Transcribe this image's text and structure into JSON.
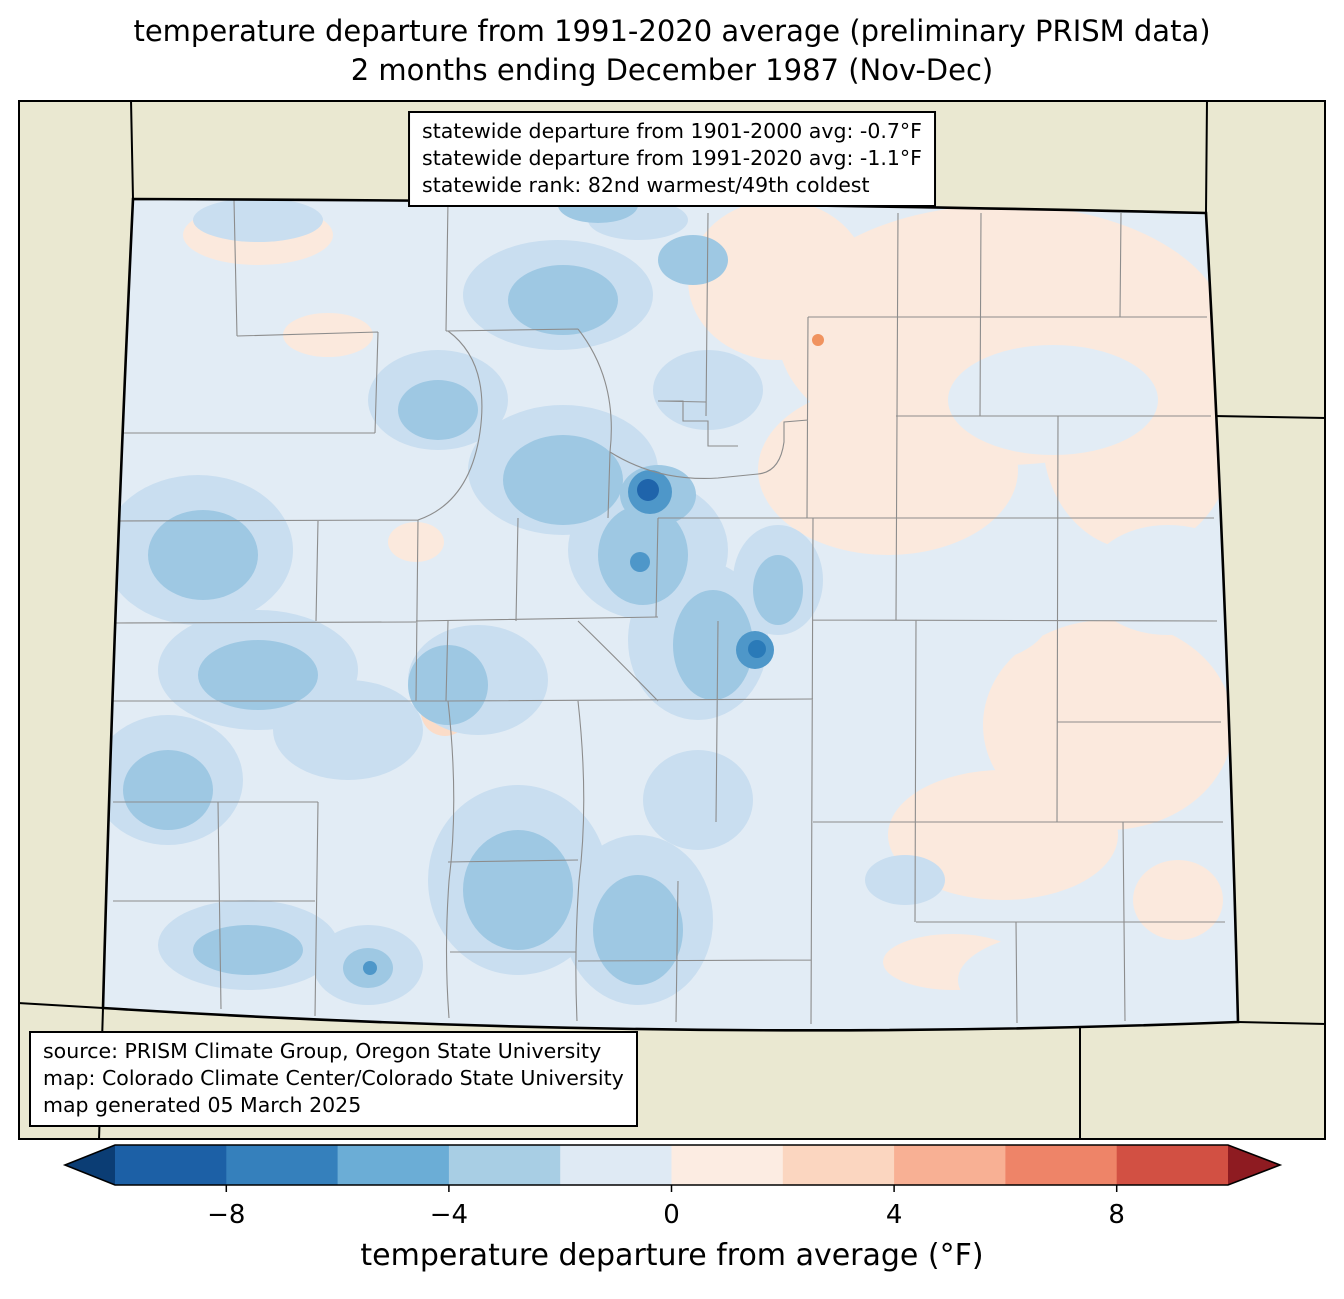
{
  "title": {
    "line1": "temperature departure from 1991-2020 average (preliminary PRISM data)",
    "line2": "2 months ending December 1987 (Nov-Dec)"
  },
  "stats_box": {
    "lines": [
      "statewide departure from 1901-2000 avg: -0.7°F",
      "statewide departure from 1991-2020 avg: -1.1°F",
      "statewide rank: 82nd warmest/49th coldest"
    ]
  },
  "source_box": {
    "lines": [
      "source: PRISM Climate Group, Oregon State University",
      "map: Colorado Climate Center/Colorado State University",
      "map generated 05 March 2025"
    ]
  },
  "map": {
    "region": "Colorado",
    "background_outside_color": "#eae8d1",
    "base_fill_color": "#e2ecf5",
    "state_border_color": "#000000",
    "county_line_color": "#8c8c8c"
  },
  "colorbar": {
    "label": "temperature departure from average (°F)",
    "range": [
      -10,
      10
    ],
    "ticks": [
      {
        "value": -8,
        "label": "−8"
      },
      {
        "value": -4,
        "label": "−4"
      },
      {
        "value": 0,
        "label": "0"
      },
      {
        "value": 4,
        "label": "4"
      },
      {
        "value": 8,
        "label": "8"
      }
    ],
    "segment_colors": [
      "#1c60a6",
      "#3580bc",
      "#6badd6",
      "#a8cee4",
      "#dfeaf4",
      "#fcece2",
      "#fbd6c0",
      "#f8b094",
      "#ee8468",
      "#d25043"
    ],
    "arrow_left_color": "#0b3d74",
    "arrow_right_color": "#8e1b21"
  }
}
